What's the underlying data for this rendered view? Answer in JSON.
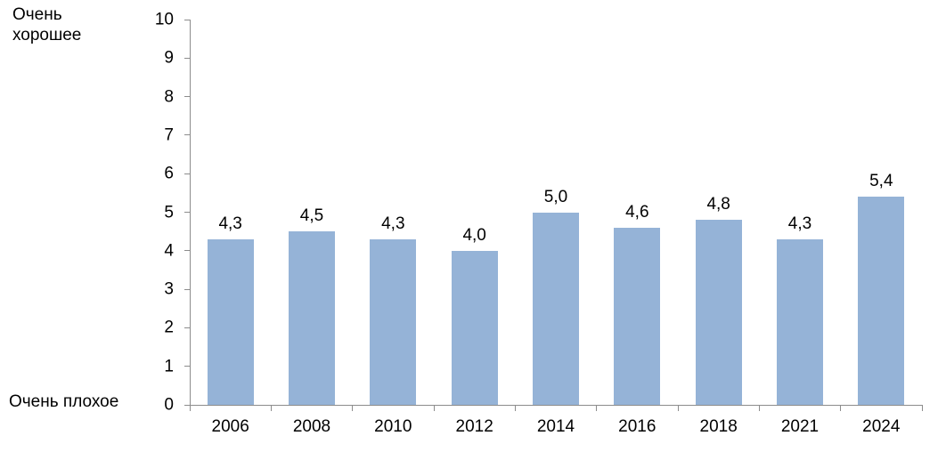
{
  "chart_data": {
    "type": "bar",
    "title": "",
    "categories": [
      "2006",
      "2008",
      "2010",
      "2012",
      "2014",
      "2016",
      "2018",
      "2021",
      "2024"
    ],
    "values": [
      4.3,
      4.5,
      4.3,
      4.0,
      5.0,
      4.6,
      4.8,
      4.3,
      5.4
    ],
    "value_labels": [
      "4,3",
      "4,5",
      "4,3",
      "4,0",
      "5,0",
      "4,6",
      "4,8",
      "4,3",
      "5,4"
    ],
    "xlabel": "",
    "ylabel_top": "Очень хорошее",
    "ylabel_bottom": "Очень плохое",
    "ylim": [
      0,
      10
    ],
    "yticks": [
      0,
      1,
      2,
      3,
      4,
      5,
      6,
      7,
      8,
      9,
      10
    ],
    "grid": false,
    "legend_position": "none",
    "bar_color": "#95B3D7",
    "axis_color": "#8C8C8C",
    "text_color": "#000000"
  }
}
